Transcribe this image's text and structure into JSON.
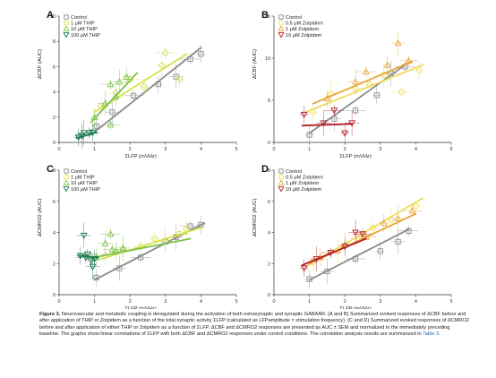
{
  "figure": {
    "panels": [
      {
        "letter": "A",
        "ylabel": "ΔCBF (AUC)",
        "xlabel": "ΣLFP (mVHz)",
        "x_ticks": [
          "0",
          "1",
          "2",
          "3",
          "4",
          "5"
        ],
        "y_ticks": [
          "0",
          "2",
          "4",
          "6",
          "8",
          "10"
        ],
        "ylim": [
          0,
          10
        ],
        "legend": [
          "Control",
          "1 μM THIP",
          "10 μM THIP",
          "100 μM THIP"
        ]
      },
      {
        "letter": "B",
        "ylabel": "ΔCBF (AUC)",
        "xlabel": "ΣLFP (mVHz)",
        "x_ticks": [
          "0",
          "1",
          "2",
          "3",
          "4",
          "5"
        ],
        "y_ticks": [
          "0",
          "5",
          "10",
          "15"
        ],
        "ylim": [
          0,
          15
        ],
        "legend": [
          "Control",
          "0.5 μM Zolpidem",
          "1 μM Zolpidem",
          "10 μM Zolpidem"
        ]
      },
      {
        "letter": "C",
        "ylabel": "ΔCMRO2 (AUC)",
        "xlabel": "ΣLFP (mVHz)",
        "x_ticks": [
          "0",
          "1",
          "2",
          "3",
          "4",
          "5"
        ],
        "y_ticks": [
          "0",
          "2",
          "4",
          "6",
          "8"
        ],
        "ylim": [
          0,
          8
        ],
        "legend": [
          "Control",
          "1 μM THIP",
          "10 μM THIP",
          "100 μM THIP"
        ]
      },
      {
        "letter": "D",
        "ylabel": "ΔCMRO2 (AUC)",
        "xlabel": "ΣLFP (mVHz)",
        "x_ticks": [
          "0",
          "1",
          "2",
          "3",
          "4",
          "5"
        ],
        "y_ticks": [
          "0",
          "2",
          "4",
          "6",
          "8"
        ],
        "ylim": [
          0,
          8
        ],
        "legend": [
          "Control",
          "0.5 μM Zolpidem",
          "1 μM Zolpidem",
          "10 μM Zolpidem"
        ]
      }
    ],
    "colors": {
      "control": "#8a8a8a",
      "thip1": "#d6e24a",
      "thip10": "#7cc04b",
      "thip100": "#1e7a4e",
      "zol05": "#f2dc5a",
      "zol1": "#e8a53a",
      "zol10": "#b3202a"
    }
  },
  "caption": {
    "label": "Figure 3.",
    "text_1": "Neurovascular and metabolic coupling is deregulated during the activation of both extrasynaptic and synaptic GABAAR. (A and B) Summarized evoked responses of ΔCBF before and after application of THIP or Zolpidem as a function of the total synaptic activity ΣLFP (calculated as LFPamplitude × stimulation frequency). (C and D) Summarized evoked responses of ΔCMRO2 before and after application of either THIP or Zolpidem as a function of ΣLFP. ΔCBF and ΔCMRO2 responses are presented as AUC ± SEM and normalized to the immediately preceding baseline. The graphs show linear correlations of ΣLFP with both ΔCBF and ΔCMRO2 responses under control conditions. The correlation analysis results are summarized in ",
    "table_ref": "Table 3",
    "text_2": "."
  },
  "chart_data": [
    {
      "type": "scatter",
      "panel": "A",
      "xlabel": "ΣLFP (mVHz)",
      "ylabel": "ΔCBF (AUC)",
      "xlim": [
        0,
        5
      ],
      "ylim": [
        0,
        10
      ],
      "series": [
        {
          "name": "Control",
          "color": "#8a8a8a",
          "marker": "square",
          "points": [
            [
              1.05,
              1.3
            ],
            [
              1.5,
              2.4
            ],
            [
              2.1,
              3.7
            ],
            [
              2.8,
              4.6
            ],
            [
              3.3,
              5.2
            ],
            [
              3.7,
              6.6
            ],
            [
              4.0,
              7.0
            ]
          ],
          "fit": [
            [
              0.9,
              0.6
            ],
            [
              4.0,
              7.5
            ]
          ]
        },
        {
          "name": "1 μM THIP",
          "color": "#d6e24a",
          "marker": "circle",
          "points": [
            [
              1.2,
              2.9
            ],
            [
              1.6,
              3.9
            ],
            [
              2.0,
              5.0
            ],
            [
              2.4,
              4.4
            ],
            [
              2.9,
              6.1
            ],
            [
              3.0,
              7.1
            ],
            [
              3.4,
              5.0
            ]
          ],
          "fit": [
            [
              1.0,
              2.4
            ],
            [
              3.6,
              7.0
            ]
          ]
        },
        {
          "name": "10 μM THIP",
          "color": "#7cc04b",
          "marker": "triangle-up",
          "points": [
            [
              1.0,
              2.0
            ],
            [
              1.3,
              3.1
            ],
            [
              1.45,
              4.6
            ],
            [
              1.6,
              3.6
            ],
            [
              1.7,
              4.8
            ],
            [
              1.45,
              1.4
            ],
            [
              1.9,
              5.2
            ]
          ],
          "fit": [
            [
              0.9,
              1.6
            ],
            [
              2.2,
              5.5
            ]
          ]
        },
        {
          "name": "100 μM THIP",
          "color": "#1e7a4e",
          "marker": "triangle-down",
          "points": [
            [
              0.55,
              0.4
            ],
            [
              0.7,
              0.75
            ],
            [
              0.85,
              0.75
            ],
            [
              0.95,
              0.8
            ],
            [
              0.65,
              0.5
            ]
          ],
          "fit": [
            [
              0.5,
              0.35
            ],
            [
              1.05,
              0.8
            ]
          ]
        }
      ]
    },
    {
      "type": "scatter",
      "panel": "B",
      "xlabel": "ΣLFP (mVHz)",
      "ylabel": "ΔCBF (AUC)",
      "xlim": [
        0,
        5
      ],
      "ylim": [
        0,
        15
      ],
      "series": [
        {
          "name": "Control",
          "color": "#8a8a8a",
          "marker": "square",
          "points": [
            [
              1.0,
              0.9
            ],
            [
              1.7,
              2.8
            ],
            [
              2.3,
              3.8
            ],
            [
              2.9,
              5.6
            ],
            [
              3.3,
              8.2
            ],
            [
              3.7,
              9.0
            ]
          ],
          "fit": [
            [
              1.0,
              1.1
            ],
            [
              3.8,
              9.5
            ]
          ]
        },
        {
          "name": "0.5 μM Zolpidem",
          "color": "#f2dc5a",
          "marker": "circle",
          "points": [
            [
              1.1,
              3.6
            ],
            [
              1.6,
              5.8
            ],
            [
              2.3,
              6.4
            ],
            [
              2.7,
              6.9
            ],
            [
              3.1,
              8.0
            ],
            [
              3.6,
              6.0
            ],
            [
              4.1,
              8.6
            ]
          ],
          "fit": [
            [
              0.9,
              3.6
            ],
            [
              4.2,
              9.2
            ]
          ]
        },
        {
          "name": "1 μM Zolpidem",
          "color": "#e8a53a",
          "marker": "triangle-up",
          "points": [
            [
              1.5,
              5.2
            ],
            [
              2.3,
              7.2
            ],
            [
              2.6,
              8.4
            ],
            [
              3.2,
              9.2
            ],
            [
              3.5,
              11.8
            ],
            [
              3.8,
              9.7
            ]
          ],
          "fit": [
            [
              1.1,
              4.6
            ],
            [
              3.9,
              9.6
            ]
          ]
        },
        {
          "name": "10 μM Zolpidem",
          "color": "#b3202a",
          "marker": "triangle-down",
          "points": [
            [
              0.85,
              3.3
            ],
            [
              1.4,
              2.3
            ],
            [
              1.7,
              3.8
            ],
            [
              2.0,
              1.1
            ],
            [
              2.2,
              2.3
            ]
          ],
          "fit": [
            [
              0.8,
              2.0
            ],
            [
              2.2,
              2.2
            ]
          ]
        }
      ]
    },
    {
      "type": "scatter",
      "panel": "C",
      "xlabel": "ΣLFP (mVHz)",
      "ylabel": "ΔCMRO2 (AUC)",
      "xlim": [
        0,
        5
      ],
      "ylim": [
        0,
        8
      ],
      "series": [
        {
          "name": "Control",
          "color": "#8a8a8a",
          "marker": "square",
          "points": [
            [
              1.05,
              1.1
            ],
            [
              1.7,
              1.7
            ],
            [
              2.3,
              2.4
            ],
            [
              3.0,
              3.4
            ],
            [
              3.3,
              3.7
            ],
            [
              3.7,
              4.4
            ],
            [
              4.0,
              4.5
            ]
          ],
          "fit": [
            [
              1.0,
              0.95
            ],
            [
              4.1,
              4.6
            ]
          ]
        },
        {
          "name": "1 μM THIP",
          "color": "#d6e24a",
          "marker": "circle",
          "points": [
            [
              1.3,
              2.5
            ],
            [
              1.8,
              2.9
            ],
            [
              2.3,
              3.1
            ],
            [
              2.7,
              3.6
            ],
            [
              3.0,
              3.5
            ],
            [
              3.4,
              3.9
            ],
            [
              3.6,
              4.2
            ]
          ],
          "fit": [
            [
              1.2,
              2.3
            ],
            [
              4.0,
              4.3
            ]
          ]
        },
        {
          "name": "10 μM THIP",
          "color": "#7cc04b",
          "marker": "triangle-up",
          "points": [
            [
              1.05,
              2.4
            ],
            [
              1.3,
              3.3
            ],
            [
              1.45,
              3.9
            ],
            [
              1.6,
              2.8
            ],
            [
              1.8,
              3.0
            ],
            [
              1.5,
              2.9
            ]
          ],
          "fit": [
            [
              1.0,
              2.4
            ],
            [
              3.7,
              3.6
            ]
          ]
        },
        {
          "name": "100 μM THIP",
          "color": "#1e7a4e",
          "marker": "triangle-down",
          "points": [
            [
              0.6,
              2.5
            ],
            [
              0.7,
              3.8
            ],
            [
              0.8,
              2.6
            ],
            [
              0.9,
              2.2
            ],
            [
              0.95,
              1.8
            ],
            [
              0.75,
              2.4
            ],
            [
              1.0,
              2.3
            ]
          ],
          "fit": [
            [
              0.55,
              2.5
            ],
            [
              1.1,
              2.4
            ]
          ]
        }
      ]
    },
    {
      "type": "scatter",
      "panel": "D",
      "xlabel": "ΣLFP (mVHz)",
      "ylabel": "ΔCMRO2 (AUC)",
      "xlim": [
        0,
        5
      ],
      "ylim": [
        0,
        8
      ],
      "series": [
        {
          "name": "Control",
          "color": "#8a8a8a",
          "marker": "square",
          "points": [
            [
              1.0,
              1.0
            ],
            [
              1.5,
              1.5
            ],
            [
              2.3,
              2.3
            ],
            [
              3.0,
              2.8
            ],
            [
              3.5,
              3.4
            ],
            [
              3.8,
              4.1
            ]
          ],
          "fit": [
            [
              1.0,
              0.95
            ],
            [
              3.8,
              4.2
            ]
          ]
        },
        {
          "name": "0.5 μM Zolpidem",
          "color": "#f2dc5a",
          "marker": "circle",
          "points": [
            [
              1.1,
              2.1
            ],
            [
              1.8,
              2.8
            ],
            [
              2.4,
              3.6
            ],
            [
              2.8,
              4.3
            ],
            [
              3.3,
              4.8
            ],
            [
              4.0,
              5.7
            ]
          ],
          "fit": [
            [
              0.9,
              1.8
            ],
            [
              4.2,
              6.2
            ]
          ]
        },
        {
          "name": "1 μM Zolpidem",
          "color": "#e8a53a",
          "marker": "triangle-up",
          "points": [
            [
              1.3,
              2.4
            ],
            [
              2.0,
              3.2
            ],
            [
              2.6,
              3.7
            ],
            [
              3.1,
              4.6
            ],
            [
              3.5,
              4.9
            ],
            [
              3.9,
              5.4
            ]
          ],
          "fit": [
            [
              1.0,
              2.0
            ],
            [
              4.0,
              5.2
            ]
          ]
        },
        {
          "name": "10 μM Zolpidem",
          "color": "#b3202a",
          "marker": "triangle-down",
          "points": [
            [
              0.85,
              1.7
            ],
            [
              1.2,
              2.3
            ],
            [
              1.6,
              2.7
            ],
            [
              2.0,
              3.1
            ],
            [
              2.3,
              4.0
            ],
            [
              2.5,
              3.9
            ]
          ],
          "fit": [
            [
              0.8,
              1.9
            ],
            [
              2.6,
              3.6
            ]
          ]
        }
      ]
    }
  ]
}
